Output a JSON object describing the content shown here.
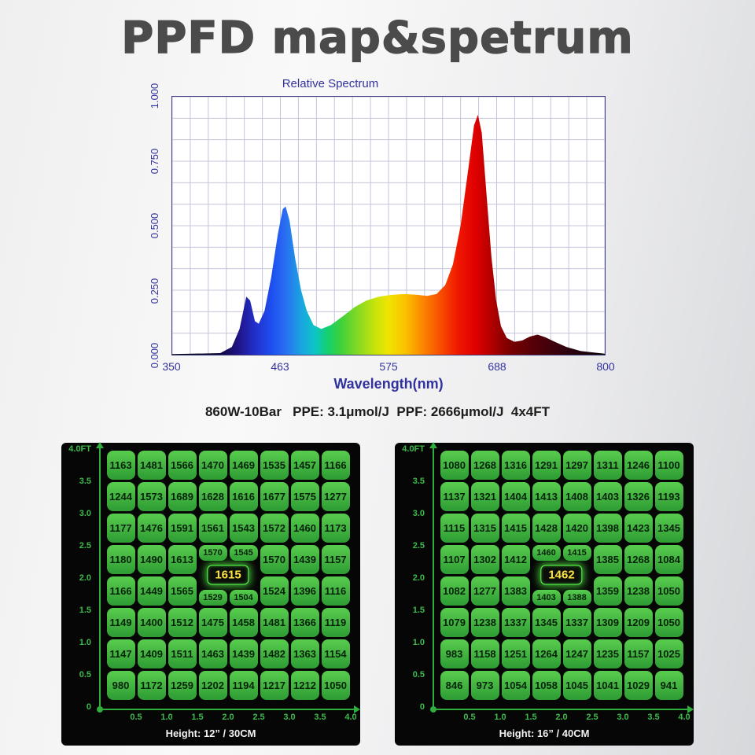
{
  "page_title": "PPFD map&spetrum",
  "subtitle": "860W-10Bar   PPE: 3.1μmol/J  PPF: 2666μmol/J  4x4FT",
  "spectrum_chart": {
    "title": "Relative Spectrum",
    "xlabel": "Wavelength(nm)",
    "x_ticks": [
      "350",
      "463",
      "575",
      "688",
      "800"
    ],
    "y_ticks": [
      "1.000",
      "0.750",
      "0.500",
      "0.250",
      "0.000"
    ]
  },
  "chart_data": [
    {
      "type": "area",
      "title": "Relative Spectrum",
      "xlabel": "Wavelength(nm)",
      "ylabel": "",
      "xlim": [
        350,
        800
      ],
      "ylim": [
        0,
        1
      ],
      "x_ticks": [
        350,
        463,
        575,
        688,
        800
      ],
      "y_ticks": [
        0.0,
        0.25,
        0.5,
        0.75,
        1.0
      ],
      "grid": true,
      "color_mapping": "visible-light-wavelength-gradient",
      "series": [
        {
          "name": "relative-intensity",
          "x": [
            350,
            400,
            412,
            420,
            427,
            431,
            436,
            440,
            446,
            453,
            460,
            465,
            468,
            472,
            478,
            484,
            490,
            497,
            505,
            515,
            528,
            540,
            552,
            565,
            578,
            592,
            605,
            615,
            625,
            634,
            642,
            650,
            658,
            664,
            668,
            672,
            677,
            682,
            687,
            692,
            698,
            706,
            714,
            722,
            730,
            738,
            748,
            760,
            775,
            800
          ],
          "y": [
            0.002,
            0.006,
            0.03,
            0.1,
            0.225,
            0.21,
            0.13,
            0.12,
            0.17,
            0.3,
            0.47,
            0.565,
            0.575,
            0.52,
            0.37,
            0.25,
            0.17,
            0.115,
            0.1,
            0.115,
            0.15,
            0.185,
            0.21,
            0.225,
            0.232,
            0.235,
            0.232,
            0.228,
            0.235,
            0.27,
            0.35,
            0.5,
            0.72,
            0.89,
            0.93,
            0.86,
            0.62,
            0.38,
            0.21,
            0.11,
            0.065,
            0.05,
            0.055,
            0.07,
            0.078,
            0.068,
            0.05,
            0.03,
            0.014,
            0.004
          ]
        }
      ]
    },
    {
      "type": "heatmap",
      "title": "PPFD map Height: 12” / 30CM",
      "x_ticks_ft": [
        0.5,
        1.0,
        1.5,
        2.0,
        2.5,
        3.0,
        3.5,
        4.0
      ],
      "y_ticks_ft": [
        4.0,
        3.5,
        3.0,
        2.5,
        2.0,
        1.5,
        1.0,
        0.5,
        0
      ],
      "center_value": 1615,
      "values": [
        [
          1163,
          1481,
          1566,
          1470,
          1469,
          1535,
          1457,
          1166
        ],
        [
          1244,
          1573,
          1689,
          1628,
          1616,
          1677,
          1575,
          1277
        ],
        [
          1177,
          1476,
          1591,
          1561,
          1543,
          1572,
          1460,
          1173
        ],
        [
          1180,
          1490,
          1613,
          1570,
          1545,
          1570,
          1439,
          1157
        ],
        [
          1166,
          1449,
          1565,
          1529,
          1504,
          1524,
          1396,
          1116
        ],
        [
          1149,
          1400,
          1512,
          1475,
          1458,
          1481,
          1366,
          1119
        ],
        [
          1147,
          1409,
          1511,
          1463,
          1439,
          1482,
          1363,
          1154
        ],
        [
          980,
          1172,
          1259,
          1202,
          1194,
          1217,
          1212,
          1050
        ]
      ]
    },
    {
      "type": "heatmap",
      "title": "PPFD map Height: 16” / 40CM",
      "x_ticks_ft": [
        0.5,
        1.0,
        1.5,
        2.0,
        2.5,
        3.0,
        3.5,
        4.0
      ],
      "y_ticks_ft": [
        4.0,
        3.5,
        3.0,
        2.5,
        2.0,
        1.5,
        1.0,
        0.5,
        0
      ],
      "center_value": 1462,
      "values": [
        [
          1080,
          1268,
          1316,
          1291,
          1297,
          1311,
          1246,
          1100
        ],
        [
          1137,
          1321,
          1404,
          1413,
          1408,
          1403,
          1326,
          1193
        ],
        [
          1115,
          1315,
          1415,
          1428,
          1420,
          1398,
          1423,
          1345
        ],
        [
          1107,
          1302,
          1412,
          1460,
          1415,
          1385,
          1268,
          1084
        ],
        [
          1082,
          1277,
          1383,
          1403,
          1388,
          1359,
          1238,
          1050
        ],
        [
          1079,
          1238,
          1337,
          1345,
          1337,
          1309,
          1209,
          1050
        ],
        [
          983,
          1158,
          1251,
          1264,
          1247,
          1235,
          1157,
          1025
        ],
        [
          846,
          973,
          1054,
          1058,
          1045,
          1041,
          1029,
          941
        ]
      ]
    }
  ],
  "maps": [
    {
      "y_ticks": [
        "4.0FT",
        "3.5",
        "3.0",
        "2.5",
        "2.0",
        "1.5",
        "1.0",
        "0.5"
      ],
      "origin_label": "0",
      "x_ticks": [
        "0.5",
        "1.0",
        "1.5",
        "2.0",
        "2.5",
        "3.0",
        "3.5",
        "4.0"
      ],
      "center_value": "1615",
      "height_label": "Height: 12” / 30CM",
      "rows": [
        [
          1163,
          1481,
          1566,
          1470,
          1469,
          1535,
          1457,
          1166
        ],
        [
          1244,
          1573,
          1689,
          1628,
          1616,
          1677,
          1575,
          1277
        ],
        [
          1177,
          1476,
          1591,
          1561,
          1543,
          1572,
          1460,
          1173
        ],
        [
          1180,
          1490,
          1613,
          1570,
          1545,
          1570,
          1439,
          1157
        ],
        [
          1166,
          1449,
          1565,
          1529,
          1504,
          1524,
          1396,
          1116
        ],
        [
          1149,
          1400,
          1512,
          1475,
          1458,
          1481,
          1366,
          1119
        ],
        [
          1147,
          1409,
          1511,
          1463,
          1439,
          1482,
          1363,
          1154
        ],
        [
          980,
          1172,
          1259,
          1202,
          1194,
          1217,
          1212,
          1050
        ]
      ]
    },
    {
      "y_ticks": [
        "4.0FT",
        "3.5",
        "3.0",
        "2.5",
        "2.0",
        "1.5",
        "1.0",
        "0.5"
      ],
      "origin_label": "0",
      "x_ticks": [
        "0.5",
        "1.0",
        "1.5",
        "2.0",
        "2.5",
        "3.0",
        "3.5",
        "4.0"
      ],
      "center_value": "1462",
      "height_label": "Height: 16” / 40CM",
      "rows": [
        [
          1080,
          1268,
          1316,
          1291,
          1297,
          1311,
          1246,
          1100
        ],
        [
          1137,
          1321,
          1404,
          1413,
          1408,
          1403,
          1326,
          1193
        ],
        [
          1115,
          1315,
          1415,
          1428,
          1420,
          1398,
          1423,
          1345
        ],
        [
          1107,
          1302,
          1412,
          1460,
          1415,
          1385,
          1268,
          1084
        ],
        [
          1082,
          1277,
          1383,
          1403,
          1388,
          1359,
          1238,
          1050
        ],
        [
          1079,
          1238,
          1337,
          1345,
          1337,
          1309,
          1209,
          1050
        ],
        [
          983,
          1158,
          1251,
          1264,
          1247,
          1235,
          1157,
          1025
        ],
        [
          846,
          973,
          1054,
          1058,
          1045,
          1041,
          1029,
          941
        ]
      ]
    }
  ],
  "colors": {
    "title-gray": "#4b4b4b",
    "axis-navy": "#32329e",
    "grid-line": "#c3c4da",
    "plot-border": "#3f3f7d",
    "subtitle-dark": "#1c1c1c",
    "panel-bg": "#060606",
    "axis-green": "#2fae3e",
    "tick-green": "#3dbb4a",
    "cell-green-light": "#58cc4e",
    "cell-green-dark": "#2e9c33",
    "cell-text": "#06230a",
    "badge-text": "#ffe23c",
    "badge-glow": "#58ff4a",
    "height-label-white": "#f2f2f2"
  }
}
